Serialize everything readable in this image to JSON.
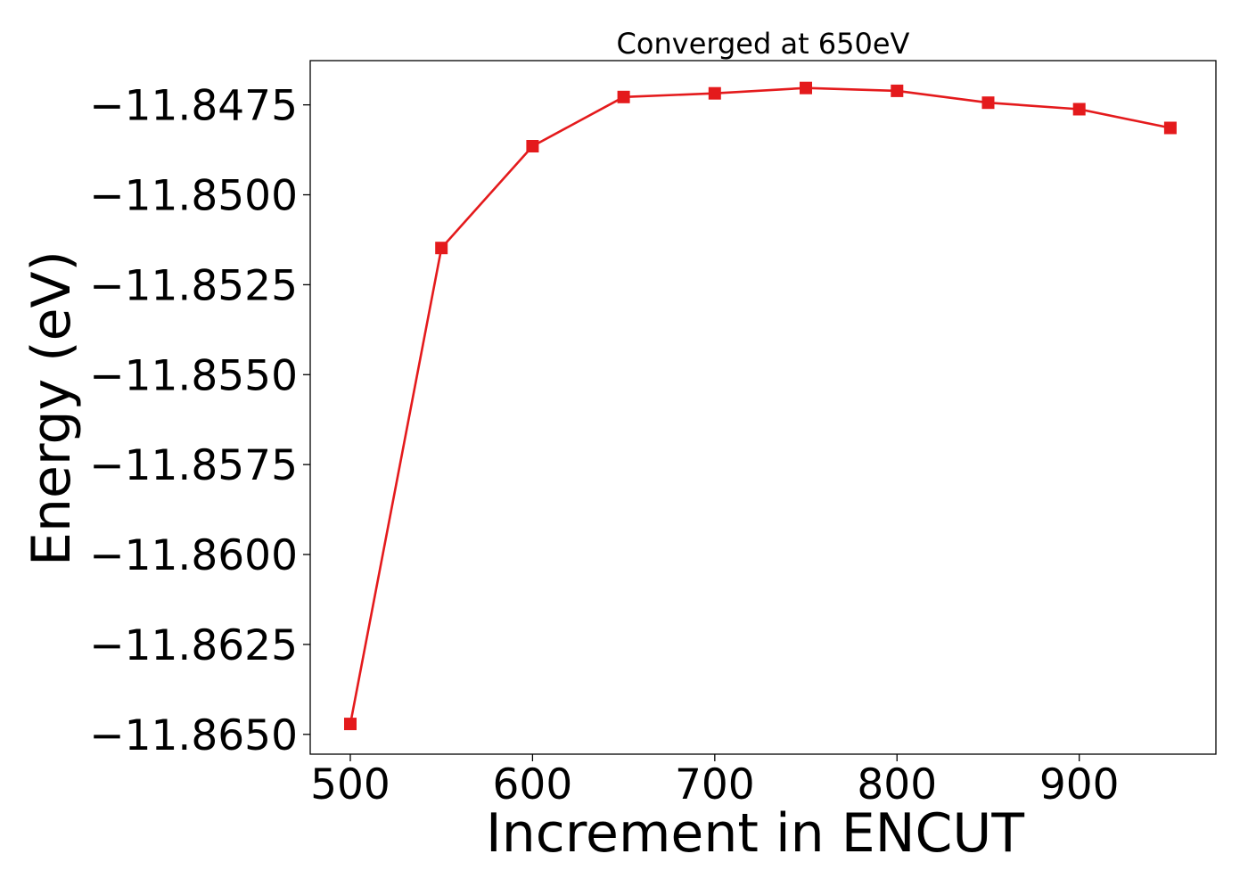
{
  "chart_data": {
    "type": "line",
    "title": "Converged at 650eV",
    "xlabel": "Increment in ENCUT",
    "ylabel": "Energy (eV)",
    "x": [
      500,
      550,
      600,
      650,
      700,
      750,
      800,
      850,
      900,
      950
    ],
    "series": [
      {
        "values": [
          -11.86471,
          -11.85148,
          -11.84865,
          -11.84728,
          -11.84718,
          -11.84703,
          -11.84711,
          -11.84744,
          -11.84762,
          -11.84814
        ],
        "color": "#e41a1c",
        "marker": "square"
      }
    ],
    "xlim": [
      478,
      975
    ],
    "ylim": [
      -11.86555,
      -11.84627
    ],
    "xticks": [
      500,
      600,
      700,
      800,
      900
    ],
    "xtick_labels": [
      "500",
      "600",
      "700",
      "800",
      "900"
    ],
    "yticks": [
      -11.865,
      -11.8625,
      -11.86,
      -11.8575,
      -11.855,
      -11.8525,
      -11.85,
      -11.8475
    ],
    "ytick_labels": [
      "−11.8650",
      "−11.8625",
      "−11.8600",
      "−11.8575",
      "−11.8550",
      "−11.8525",
      "−11.8500",
      "−11.8475"
    ],
    "grid": false,
    "legend": "none"
  }
}
